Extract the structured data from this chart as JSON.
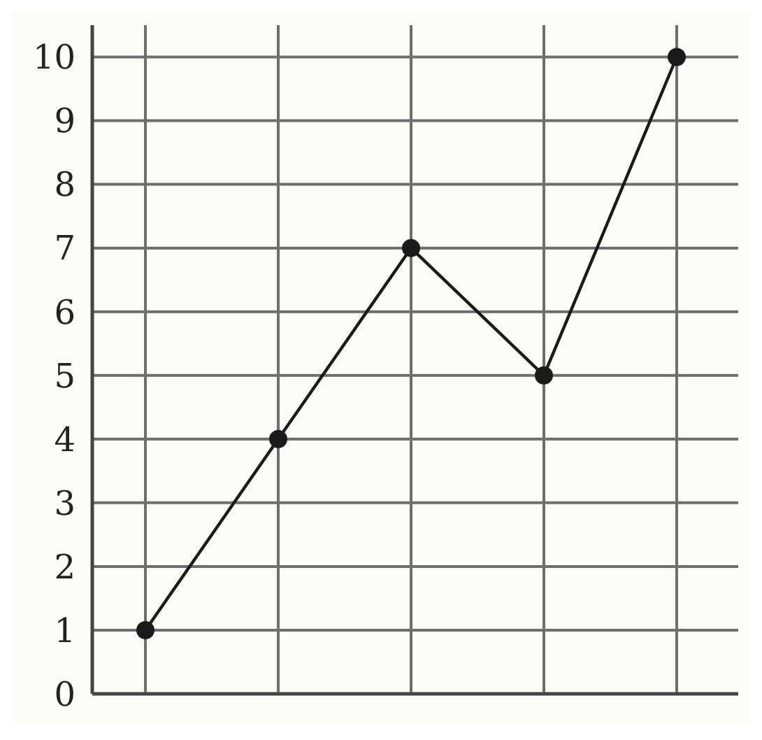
{
  "chart_data": {
    "type": "line",
    "categories": [
      null,
      null,
      null,
      null,
      null
    ],
    "series": [
      {
        "color": "#1a1a1a",
        "values": [
          1,
          4,
          7,
          5,
          10
        ]
      }
    ],
    "ylim": [
      0,
      10.5
    ],
    "yticks": [
      0,
      1,
      2,
      3,
      4,
      5,
      6,
      7,
      8,
      9,
      10
    ],
    "grid": true,
    "marker": "circle",
    "line_style": "solid"
  }
}
